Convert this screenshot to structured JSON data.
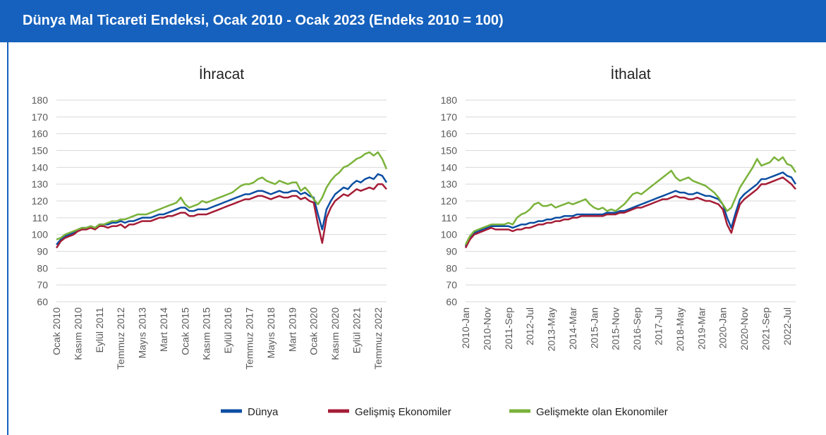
{
  "title": "Dünya Mal Ticareti Endeksi, Ocak 2010 - Ocak 2023 (Endeks 2010 = 100)",
  "chart_data": [
    {
      "type": "line",
      "title": "İhracat",
      "categories": [
        "Ocak 2010",
        null,
        null,
        null,
        null,
        "Kasım 2010",
        null,
        null,
        null,
        null,
        "Eylül 2011",
        null,
        null,
        null,
        null,
        "Temmuz 2012",
        null,
        null,
        null,
        null,
        "Mayıs 2013",
        null,
        null,
        null,
        null,
        "Mart 2014",
        null,
        null,
        null,
        null,
        "Ocak 2015",
        null,
        null,
        null,
        null,
        "Kasım 2015",
        null,
        null,
        null,
        null,
        "Eylül 2016",
        null,
        null,
        null,
        null,
        "Temmuz 2017",
        null,
        null,
        null,
        null,
        "Mayıs 2018",
        null,
        null,
        null,
        null,
        "Mart 2019",
        null,
        null,
        null,
        null,
        "Ocak 2020",
        null,
        null,
        null,
        null,
        "Kasım 2020",
        null,
        null,
        null,
        null,
        "Eylül 2021",
        null,
        null,
        null,
        null,
        "Temmuz 2022",
        null,
        null
      ],
      "ylim": [
        60,
        180
      ],
      "yticks": [
        60,
        70,
        80,
        90,
        100,
        110,
        120,
        130,
        140,
        150,
        160,
        170,
        180
      ],
      "grid": true,
      "series": [
        {
          "name": "Dünya",
          "color": "#0b4ea2",
          "values": [
            94,
            97,
            99,
            100,
            101,
            103,
            104,
            104,
            105,
            104,
            106,
            106,
            106,
            107,
            107,
            108,
            107,
            108,
            108,
            109,
            110,
            110,
            110,
            111,
            112,
            112,
            113,
            114,
            115,
            116,
            116,
            114,
            114,
            115,
            115,
            115,
            116,
            117,
            118,
            119,
            120,
            121,
            122,
            123,
            124,
            124,
            125,
            126,
            126,
            125,
            124,
            125,
            126,
            125,
            125,
            126,
            126,
            124,
            125,
            123,
            122,
            112,
            103,
            115,
            120,
            124,
            126,
            128,
            127,
            130,
            132,
            131,
            133,
            134,
            133,
            136,
            135,
            131
          ]
        },
        {
          "name": "Gelişmiş Ekonomiler",
          "color": "#a51c36",
          "values": [
            92,
            96,
            98,
            99,
            100,
            102,
            103,
            103,
            104,
            103,
            105,
            105,
            104,
            105,
            105,
            106,
            104,
            106,
            106,
            107,
            108,
            108,
            108,
            109,
            110,
            110,
            111,
            111,
            112,
            113,
            113,
            111,
            111,
            112,
            112,
            112,
            113,
            114,
            115,
            116,
            117,
            118,
            119,
            120,
            121,
            121,
            122,
            123,
            123,
            122,
            121,
            122,
            123,
            122,
            122,
            123,
            123,
            121,
            122,
            120,
            119,
            106,
            95,
            110,
            116,
            120,
            122,
            124,
            123,
            125,
            127,
            126,
            127,
            128,
            127,
            130,
            130,
            127
          ]
        },
        {
          "name": "Gelişmekte olan Ekonomiler",
          "color": "#7ab23a",
          "values": [
            97,
            98,
            100,
            101,
            102,
            103,
            104,
            104,
            105,
            104,
            106,
            106,
            107,
            108,
            108,
            109,
            109,
            110,
            111,
            112,
            112,
            112,
            113,
            114,
            115,
            116,
            117,
            118,
            119,
            122,
            118,
            116,
            117,
            118,
            120,
            119,
            120,
            121,
            122,
            123,
            124,
            125,
            127,
            129,
            130,
            130,
            131,
            133,
            134,
            132,
            131,
            130,
            132,
            131,
            130,
            131,
            131,
            126,
            128,
            125,
            121,
            118,
            122,
            128,
            132,
            135,
            137,
            140,
            141,
            143,
            145,
            146,
            148,
            149,
            147,
            149,
            145,
            139
          ]
        }
      ]
    },
    {
      "type": "line",
      "title": "İthalat",
      "categories": [
        "2010-Jan",
        null,
        null,
        null,
        null,
        "2010-Nov",
        null,
        null,
        null,
        null,
        "2011-Sep",
        null,
        null,
        null,
        null,
        "2012-Jul",
        null,
        null,
        null,
        null,
        "2013-May",
        null,
        null,
        null,
        null,
        "2014-Mar",
        null,
        null,
        null,
        null,
        "2015-Jan",
        null,
        null,
        null,
        null,
        "2015-Nov",
        null,
        null,
        null,
        null,
        "2016-Sep",
        null,
        null,
        null,
        null,
        "2017-Jul",
        null,
        null,
        null,
        null,
        "2018-May",
        null,
        null,
        null,
        null,
        "2019-Mar",
        null,
        null,
        null,
        null,
        "2020-Jan",
        null,
        null,
        null,
        null,
        "2020-Nov",
        null,
        null,
        null,
        null,
        "2021-Sep",
        null,
        null,
        null,
        null,
        "2022-Jul",
        null,
        null
      ],
      "ylim": [
        60,
        180
      ],
      "yticks": [
        60,
        70,
        80,
        90,
        100,
        110,
        120,
        130,
        140,
        150,
        160,
        170,
        180
      ],
      "grid": true,
      "series": [
        {
          "name": "Dünya",
          "color": "#0b4ea2",
          "values": [
            93,
            98,
            101,
            102,
            103,
            104,
            105,
            105,
            105,
            105,
            105,
            104,
            105,
            106,
            106,
            107,
            107,
            108,
            108,
            109,
            109,
            110,
            110,
            111,
            111,
            111,
            112,
            112,
            112,
            112,
            112,
            112,
            112,
            113,
            113,
            113,
            114,
            114,
            115,
            116,
            117,
            118,
            119,
            120,
            121,
            122,
            123,
            124,
            125,
            126,
            125,
            125,
            124,
            124,
            125,
            124,
            123,
            123,
            122,
            121,
            118,
            110,
            104,
            113,
            121,
            124,
            126,
            128,
            130,
            133,
            133,
            134,
            135,
            136,
            137,
            135,
            134,
            130
          ]
        },
        {
          "name": "Gelişmiş Ekonomiler",
          "color": "#a51c36",
          "values": [
            92,
            97,
            100,
            101,
            102,
            103,
            104,
            103,
            103,
            103,
            103,
            102,
            103,
            103,
            104,
            104,
            105,
            106,
            106,
            107,
            107,
            108,
            108,
            109,
            109,
            110,
            110,
            111,
            111,
            111,
            111,
            111,
            111,
            112,
            112,
            112,
            113,
            113,
            114,
            115,
            116,
            116,
            117,
            118,
            119,
            120,
            121,
            121,
            122,
            123,
            122,
            122,
            121,
            121,
            122,
            121,
            120,
            120,
            119,
            118,
            115,
            106,
            101,
            110,
            118,
            121,
            123,
            125,
            127,
            130,
            130,
            131,
            132,
            133,
            134,
            132,
            130,
            127
          ]
        },
        {
          "name": "Gelişmekte olan Ekonomiler",
          "color": "#7ab23a",
          "values": [
            94,
            99,
            102,
            103,
            104,
            105,
            106,
            106,
            106,
            106,
            107,
            106,
            110,
            112,
            113,
            115,
            118,
            119,
            117,
            117,
            118,
            116,
            117,
            118,
            119,
            118,
            119,
            120,
            121,
            118,
            116,
            115,
            116,
            114,
            115,
            114,
            116,
            118,
            121,
            124,
            125,
            124,
            126,
            128,
            130,
            132,
            134,
            136,
            138,
            134,
            132,
            133,
            134,
            132,
            131,
            130,
            129,
            127,
            125,
            122,
            118,
            114,
            116,
            122,
            128,
            132,
            136,
            140,
            145,
            141,
            142,
            143,
            146,
            144,
            146,
            142,
            141,
            137
          ]
        }
      ]
    }
  ]
}
